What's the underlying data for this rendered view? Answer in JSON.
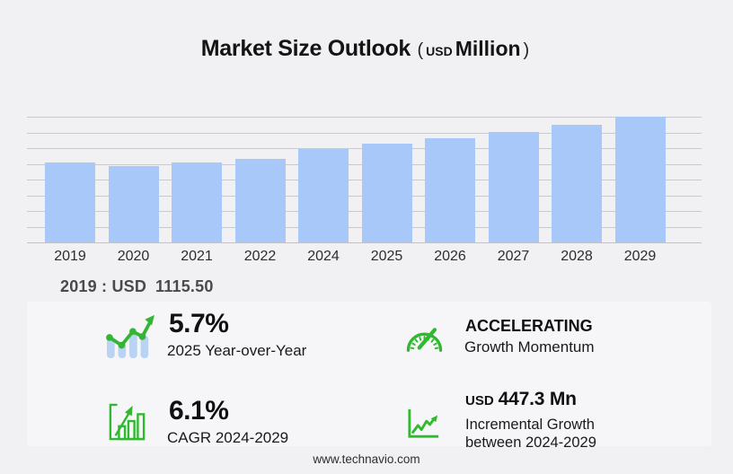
{
  "title": {
    "main": "Market Size Outlook",
    "paren_open": "(",
    "unit_currency": "USD",
    "unit_scale": "Million",
    "paren_close": ")"
  },
  "baseline_note": {
    "prefix": "2019 : USD",
    "value": "1115.50"
  },
  "chart_data": {
    "type": "bar",
    "title": "Market Size Outlook",
    "unit": "USD Million",
    "categories": [
      "2019",
      "2020",
      "2021",
      "2022",
      "2024",
      "2025",
      "2026",
      "2027",
      "2028",
      "2029"
    ],
    "values": [
      1115.5,
      1065,
      1118,
      1170,
      1307,
      1381.5,
      1455,
      1542,
      1645,
      1754.3
    ],
    "ylim": [
      0,
      1754.3
    ],
    "grid": true,
    "gridline_count": 9,
    "legend": false,
    "bar_color": "#a9c8fa",
    "annotation_2019": "2019 : USD 1115.50"
  },
  "stats": {
    "yoy": {
      "value": "5.7%",
      "label": "2025 Year-over-Year",
      "icon": "bar-trend-icon"
    },
    "momentum": {
      "value": "ACCELERATING",
      "label": "Growth Momentum",
      "icon": "gauge-icon"
    },
    "cagr": {
      "value": "6.1%",
      "label": "CAGR 2024-2029",
      "icon": "growth-bars-icon"
    },
    "incremental": {
      "value_prefix": "USD",
      "value": "447.3 Mn",
      "label_line1": "Incremental Growth",
      "label_line2": "between 2024-2029",
      "icon": "line-growth-icon"
    }
  },
  "footer": {
    "website": "www.technavio.com"
  },
  "colors": {
    "background": "#f1f1f3",
    "panel": "#f6f6f8",
    "bar_blue": "#a9c8fa",
    "gridline": "#cacace",
    "accent_green": "#2eb92e",
    "icon_bar_blue": "#b9d3f2",
    "text_dark": "#141414",
    "text_gray": "#4a4a4a"
  }
}
